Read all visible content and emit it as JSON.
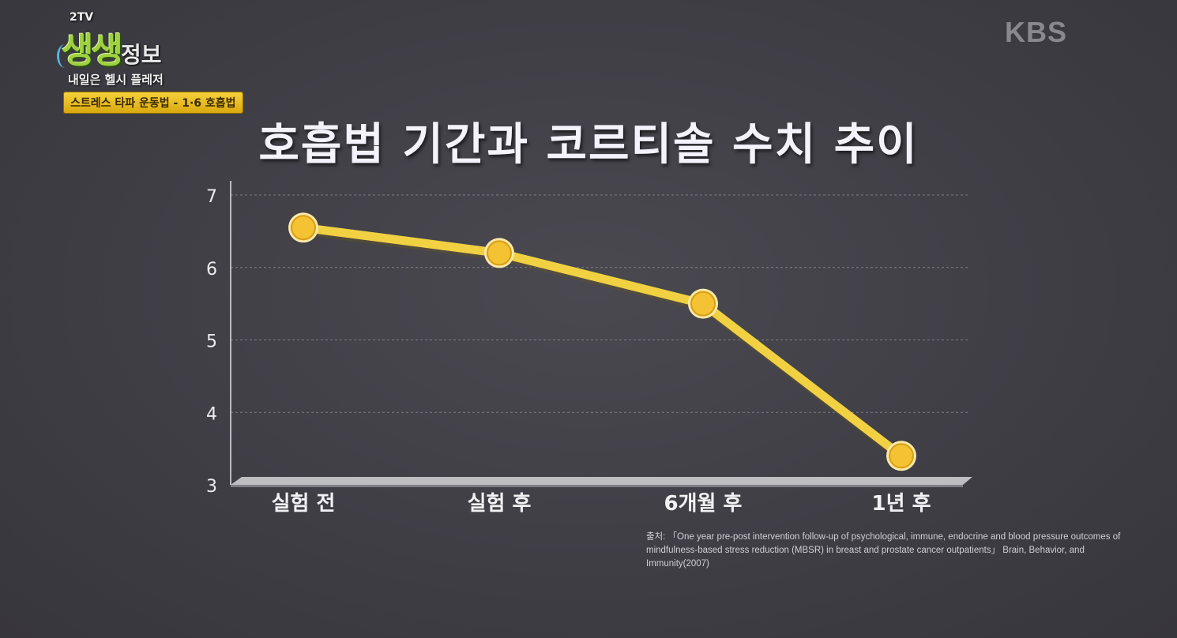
{
  "branding": {
    "program_tag": "2TV",
    "program_name": "생생",
    "program_name_suffix": "정보",
    "segment": "내일은 헬시 플레저",
    "topic": "스트레스 타파 운동법 - 1·6 호흡법",
    "broadcaster": "KBS"
  },
  "chart_data": {
    "type": "line",
    "title": "호흡법 기간과 코르티솔 수치 추이",
    "categories": [
      "실험 전",
      "실험 후",
      "6개월 후",
      "1년 후"
    ],
    "series": [
      {
        "values": [
          6.55,
          6.2,
          5.5,
          3.4
        ]
      }
    ],
    "ylim": [
      3,
      7
    ],
    "yticks": [
      3,
      4,
      5,
      6,
      7
    ],
    "grid": true,
    "line_color": "#f1d142",
    "marker_color": "#f4c232"
  },
  "source": "출처: 「One year pre-post intervention follow-up of psychological, immune, endocrine and blood pressure outcomes of mindfulness-based stress reduction (MBSR) in breast and prostate cancer outpatients」 Brain, Behavior, and Immunity(2007)"
}
